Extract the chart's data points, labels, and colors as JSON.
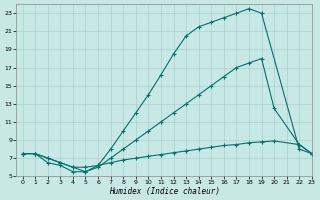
{
  "xlabel": "Humidex (Indice chaleur)",
  "bg_color": "#c8e8e4",
  "line_color": "#007070",
  "grid_color": "#aad0cc",
  "xlim": [
    -0.5,
    23
  ],
  "ylim": [
    5,
    24
  ],
  "xticks": [
    0,
    1,
    2,
    3,
    4,
    5,
    6,
    7,
    8,
    9,
    10,
    11,
    12,
    13,
    14,
    15,
    16,
    17,
    18,
    19,
    20,
    21,
    22,
    23
  ],
  "yticks": [
    5,
    7,
    9,
    11,
    13,
    15,
    17,
    19,
    21,
    23
  ],
  "curve1_x": [
    0,
    1,
    2,
    3,
    4,
    5,
    6,
    7,
    8,
    9,
    10,
    11,
    12,
    13,
    14,
    15,
    16,
    17,
    18,
    19,
    22,
    23
  ],
  "curve1_y": [
    7.5,
    7.5,
    7.0,
    6.5,
    6.0,
    5.5,
    6.2,
    8.0,
    10.0,
    12.0,
    14.0,
    16.2,
    18.5,
    20.5,
    21.5,
    22.0,
    22.5,
    23.0,
    23.5,
    23.0,
    8.0,
    7.5
  ],
  "curve2_x": [
    0,
    1,
    2,
    3,
    4,
    5,
    6,
    7,
    8,
    9,
    10,
    11,
    12,
    13,
    14,
    15,
    16,
    17,
    18,
    19,
    20,
    22,
    23
  ],
  "curve2_y": [
    7.5,
    7.5,
    6.5,
    6.2,
    5.5,
    5.5,
    6.0,
    7.0,
    8.0,
    9.0,
    10.0,
    11.0,
    12.0,
    13.0,
    14.0,
    15.0,
    16.0,
    17.0,
    17.5,
    18.0,
    12.5,
    8.5,
    7.5
  ],
  "curve3_x": [
    0,
    1,
    2,
    3,
    4,
    5,
    6,
    7,
    8,
    9,
    10,
    11,
    12,
    13,
    14,
    15,
    16,
    17,
    18,
    19,
    20,
    22,
    23
  ],
  "curve3_y": [
    7.5,
    7.5,
    7.0,
    6.5,
    6.0,
    6.0,
    6.2,
    6.5,
    6.8,
    7.0,
    7.2,
    7.4,
    7.6,
    7.8,
    8.0,
    8.2,
    8.4,
    8.5,
    8.7,
    8.8,
    8.9,
    8.5,
    7.5
  ]
}
